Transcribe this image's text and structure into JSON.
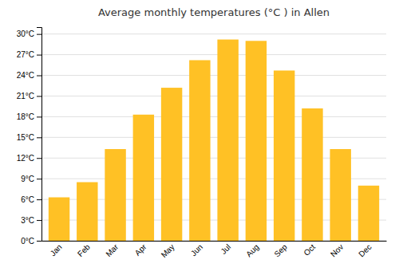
{
  "chart_data": {
    "type": "bar",
    "title": "Average monthly temperatures (°C ) in Allen",
    "categories": [
      "Jan",
      "Feb",
      "Mar",
      "Apr",
      "May",
      "Jun",
      "Jul",
      "Aug",
      "Sep",
      "Oct",
      "Nov",
      "Dec"
    ],
    "values": [
      6.3,
      8.5,
      13.3,
      18.3,
      22.2,
      26.2,
      29.2,
      29.0,
      24.7,
      19.2,
      13.3,
      8.0
    ],
    "color": "#FFC125",
    "ylim": [
      0,
      31
    ],
    "yticks": [
      {
        "value": 0,
        "label": "0°C"
      },
      {
        "value": 3,
        "label": "3°C"
      },
      {
        "value": 6,
        "label": "6°C"
      },
      {
        "value": 9,
        "label": "9°C"
      },
      {
        "value": 12,
        "label": "12°C"
      },
      {
        "value": 15,
        "label": "15°C"
      },
      {
        "value": 18,
        "label": "18°C"
      },
      {
        "value": 21,
        "label": "21°C"
      },
      {
        "value": 24,
        "label": "24°C"
      },
      {
        "value": 27,
        "label": "27°C"
      },
      {
        "value": 30,
        "label": "30°C"
      }
    ],
    "grid": true
  }
}
